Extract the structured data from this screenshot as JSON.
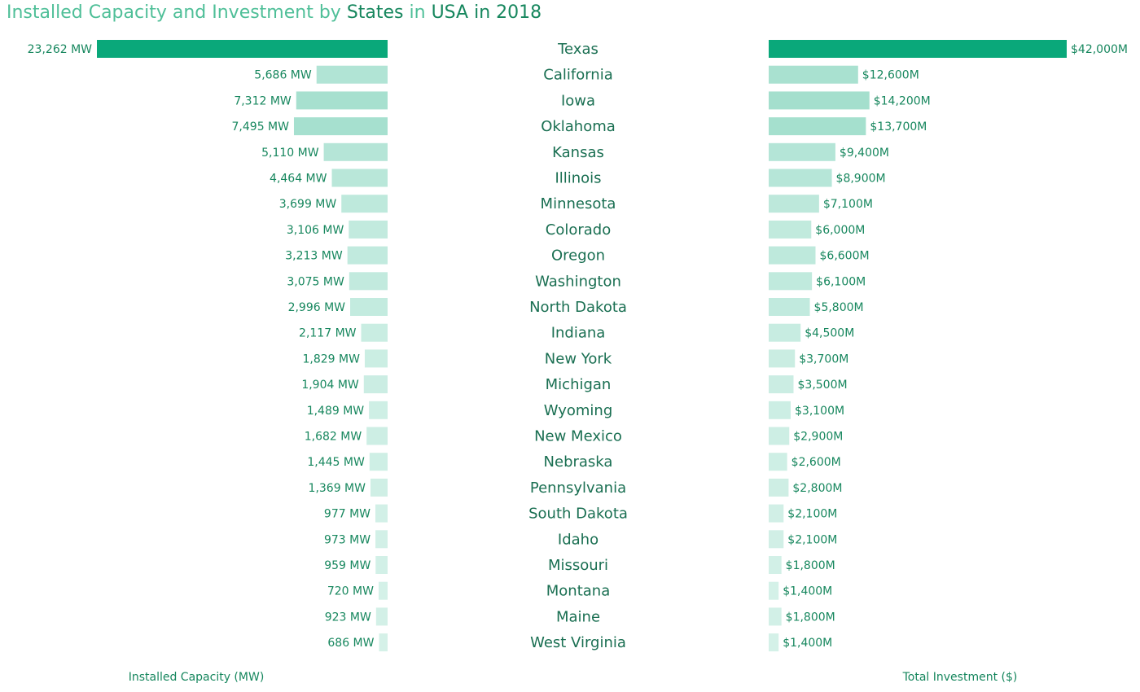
{
  "title_parts": [
    {
      "text": "Installed Capacity and Investment by ",
      "tone": "light"
    },
    {
      "text": "States",
      "tone": "dark"
    },
    {
      "text": " in ",
      "tone": "light"
    },
    {
      "text": "USA",
      "tone": "dark"
    },
    {
      "text": " in 2018",
      "tone": "dark"
    }
  ],
  "colors": {
    "title_light": "#4fbf98",
    "title_dark": "#17875e",
    "label_text": "#17875e",
    "state_text": "#1a6f52",
    "bar_max": "#0aa87a",
    "bar_min": "#eefaf6"
  },
  "chart_data": {
    "type": "bar",
    "orientation": "horizontal",
    "layout": "butterfly",
    "categories": [
      "Texas",
      "California",
      "Iowa",
      "Oklahoma",
      "Kansas",
      "Illinois",
      "Minnesota",
      "Colorado",
      "Oregon",
      "Washington",
      "North Dakota",
      "Indiana",
      "New York",
      "Michigan",
      "Wyoming",
      "New Mexico",
      "Nebraska",
      "Pennsylvania",
      "South Dakota",
      "Idaho",
      "Missouri",
      "Montana",
      "Maine",
      "West Virginia"
    ],
    "series": [
      {
        "name": "Installed Capacity (MW)",
        "side": "left",
        "values": [
          23262,
          5686,
          7312,
          7495,
          5110,
          4464,
          3699,
          3106,
          3213,
          3075,
          2996,
          2117,
          1829,
          1904,
          1489,
          1682,
          1445,
          1369,
          977,
          973,
          959,
          720,
          923,
          686
        ],
        "labels": [
          "23,262 MW",
          "5,686 MW",
          "7,312 MW",
          "7,495 MW",
          "5,110 MW",
          "4,464 MW",
          "3,699 MW",
          "3,106 MW",
          "3,213 MW",
          "3,075 MW",
          "2,996 MW",
          "2,117 MW",
          "1,829 MW",
          "1,904 MW",
          "1,489 MW",
          "1,682 MW",
          "1,445 MW",
          "1,369 MW",
          "977 MW",
          "973 MW",
          "959 MW",
          "720 MW",
          "923 MW",
          "686 MW"
        ]
      },
      {
        "name": "Total Investment ($)",
        "side": "right",
        "values": [
          42000,
          12600,
          14200,
          13700,
          9400,
          8900,
          7100,
          6000,
          6600,
          6100,
          5800,
          4500,
          3700,
          3500,
          3100,
          2900,
          2600,
          2800,
          2100,
          2100,
          1800,
          1400,
          1800,
          1400
        ],
        "labels": [
          "$42,000M",
          "$12,600M",
          "$14,200M",
          "$13,700M",
          "$9,400M",
          "$8,900M",
          "$7,100M",
          "$6,000M",
          "$6,600M",
          "$6,100M",
          "$5,800M",
          "$4,500M",
          "$3,700M",
          "$3,500M",
          "$3,100M",
          "$2,900M",
          "$2,600M",
          "$2,800M",
          "$2,100M",
          "$2,100M",
          "$1,800M",
          "$1,400M",
          "$1,800M",
          "$1,400M"
        ]
      }
    ],
    "xlabel_left": "Installed Capacity (MW)",
    "xlabel_right": "Total Investment ($)",
    "grid": false,
    "legend": "none"
  }
}
